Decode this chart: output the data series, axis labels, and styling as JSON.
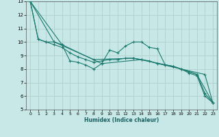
{
  "xlabel": "Humidex (Indice chaleur)",
  "background_color": "#c8e8e8",
  "grid_color": "#b0cece",
  "line_color": "#1a7a6e",
  "xlim": [
    -0.5,
    23.5
  ],
  "ylim": [
    5,
    13
  ],
  "xticks": [
    0,
    1,
    2,
    3,
    4,
    5,
    6,
    7,
    8,
    9,
    10,
    11,
    12,
    13,
    14,
    15,
    16,
    17,
    18,
    19,
    20,
    21,
    22,
    23
  ],
  "yticks": [
    5,
    6,
    7,
    8,
    9,
    10,
    11,
    12,
    13
  ],
  "series1": [
    [
      0,
      13.0
    ],
    [
      1,
      10.2
    ],
    [
      2,
      10.0
    ],
    [
      3,
      10.0
    ],
    [
      4,
      9.8
    ],
    [
      5,
      8.6
    ],
    [
      6,
      8.5
    ],
    [
      7,
      8.3
    ],
    [
      8,
      8.0
    ],
    [
      9,
      8.4
    ],
    [
      10,
      9.4
    ],
    [
      11,
      9.2
    ],
    [
      12,
      9.7
    ],
    [
      13,
      10.0
    ],
    [
      14,
      10.0
    ],
    [
      15,
      9.6
    ],
    [
      16,
      9.5
    ],
    [
      17,
      8.3
    ],
    [
      18,
      8.2
    ],
    [
      19,
      8.0
    ],
    [
      20,
      7.7
    ],
    [
      21,
      7.5
    ],
    [
      22,
      6.0
    ],
    [
      23,
      5.5
    ]
  ],
  "series2": [
    [
      0,
      13.0
    ],
    [
      1,
      10.2
    ],
    [
      2,
      10.0
    ],
    [
      3,
      9.8
    ],
    [
      4,
      9.6
    ],
    [
      5,
      9.2
    ],
    [
      6,
      8.9
    ],
    [
      7,
      8.7
    ],
    [
      8,
      8.5
    ],
    [
      9,
      8.6
    ],
    [
      10,
      8.7
    ],
    [
      11,
      8.7
    ],
    [
      12,
      8.8
    ],
    [
      13,
      8.8
    ],
    [
      14,
      8.7
    ],
    [
      15,
      8.6
    ],
    [
      16,
      8.4
    ],
    [
      17,
      8.3
    ],
    [
      18,
      8.2
    ],
    [
      19,
      8.0
    ],
    [
      20,
      7.8
    ],
    [
      21,
      7.6
    ],
    [
      22,
      6.2
    ],
    [
      23,
      5.5
    ]
  ],
  "series3": [
    [
      0,
      13.0
    ],
    [
      4,
      9.8
    ],
    [
      9,
      8.4
    ],
    [
      14,
      8.7
    ],
    [
      19,
      8.0
    ],
    [
      22,
      7.6
    ],
    [
      23,
      5.5
    ]
  ],
  "series4": [
    [
      0,
      13.0
    ],
    [
      3,
      10.0
    ],
    [
      8,
      8.7
    ],
    [
      13,
      8.8
    ],
    [
      18,
      8.2
    ],
    [
      21,
      7.6
    ],
    [
      23,
      5.5
    ]
  ]
}
